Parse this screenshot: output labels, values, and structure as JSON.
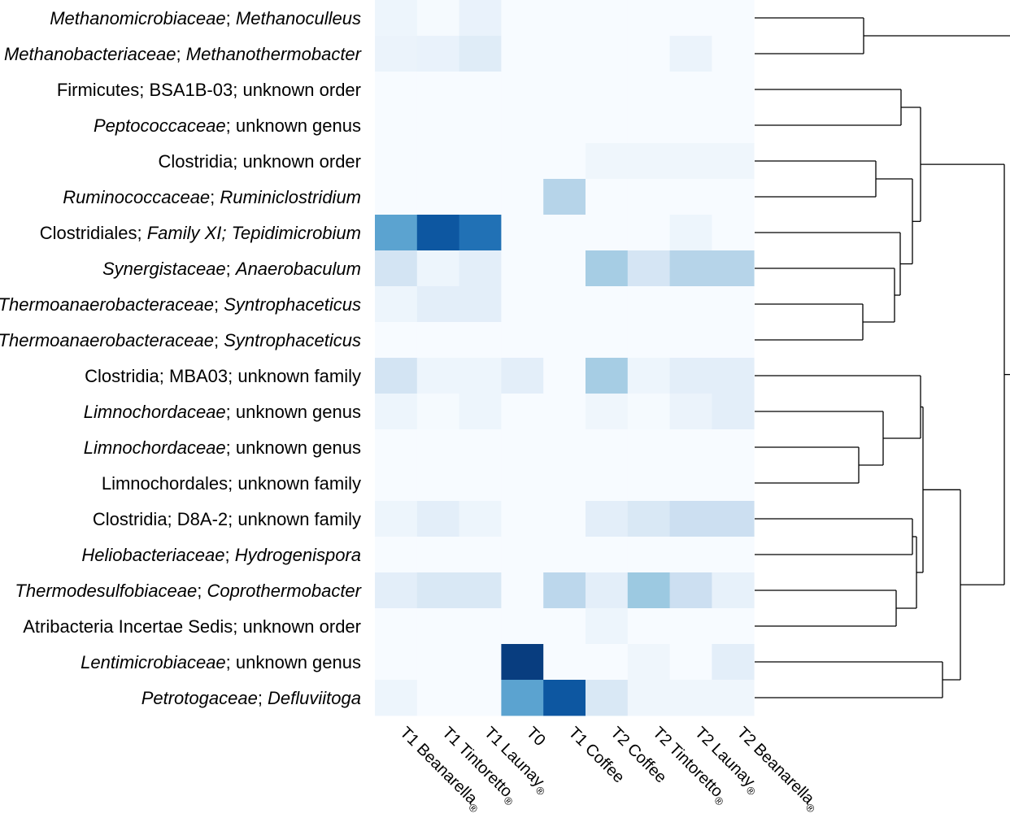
{
  "chart_data": {
    "type": "heatmap",
    "title": "",
    "xlabel": "",
    "ylabel": "",
    "colormap": "Blues",
    "color_low": "#f7fbff",
    "color_high": "#08306b",
    "value_range": [
      0,
      1
    ],
    "columns": [
      {
        "main": "T1 Beanarella",
        "mark": "®"
      },
      {
        "main": "T1 Tintoretto",
        "mark": "®"
      },
      {
        "main": "T1 Launay",
        "mark": "®"
      },
      {
        "main": "T0",
        "mark": ""
      },
      {
        "main": "T1 Coffee",
        "mark": ""
      },
      {
        "main": "T2 Coffee",
        "mark": ""
      },
      {
        "main": "T2 Tintoretto",
        "mark": "®"
      },
      {
        "main": "T2 Launay",
        "mark": "®"
      },
      {
        "main": "T2 Beanarella",
        "mark": "®"
      }
    ],
    "rows": [
      {
        "parts": [
          {
            "t": "Methanomicrobiaceae",
            "i": true
          },
          {
            "t": "; ",
            "i": false
          },
          {
            "t": "Methanoculleus",
            "i": true
          }
        ]
      },
      {
        "parts": [
          {
            "t": "Methanobacteriaceae",
            "i": true
          },
          {
            "t": "; ",
            "i": false
          },
          {
            "t": "Methanothermobacter",
            "i": true
          }
        ]
      },
      {
        "parts": [
          {
            "t": "Firmicutes; BSA1B-03; unknown order",
            "i": false
          }
        ]
      },
      {
        "parts": [
          {
            "t": "Peptococcaceae",
            "i": true
          },
          {
            "t": "; unknown genus",
            "i": false
          }
        ]
      },
      {
        "parts": [
          {
            "t": "Clostridia; unknown order",
            "i": false
          }
        ]
      },
      {
        "parts": [
          {
            "t": "Ruminococcaceae",
            "i": true
          },
          {
            "t": "; ",
            "i": false
          },
          {
            "t": "Ruminiclostridium",
            "i": true
          }
        ]
      },
      {
        "parts": [
          {
            "t": "Clostridiales; ",
            "i": false
          },
          {
            "t": "Family XI; Tepidimicrobium",
            "i": true
          }
        ]
      },
      {
        "parts": [
          {
            "t": "Synergistaceae",
            "i": true
          },
          {
            "t": "; ",
            "i": false
          },
          {
            "t": "Anaerobaculum",
            "i": true
          }
        ]
      },
      {
        "parts": [
          {
            "t": "Thermoanaerobacteraceae",
            "i": true
          },
          {
            "t": "; ",
            "i": false
          },
          {
            "t": "Syntrophaceticus",
            "i": true
          }
        ]
      },
      {
        "parts": [
          {
            "t": "Thermoanaerobacteraceae",
            "i": true
          },
          {
            "t": "; ",
            "i": false
          },
          {
            "t": "Syntrophaceticus",
            "i": true
          }
        ]
      },
      {
        "parts": [
          {
            "t": "Clostridia; MBA03; unknown family",
            "i": false
          }
        ]
      },
      {
        "parts": [
          {
            "t": "Limnochordaceae",
            "i": true
          },
          {
            "t": "; unknown genus",
            "i": false
          }
        ]
      },
      {
        "parts": [
          {
            "t": "Limnochordaceae",
            "i": true
          },
          {
            "t": "; unknown genus",
            "i": false
          }
        ]
      },
      {
        "parts": [
          {
            "t": "Limnochordales; unknown family",
            "i": false
          }
        ]
      },
      {
        "parts": [
          {
            "t": "Clostridia; D8A-2; unknown family",
            "i": false
          }
        ]
      },
      {
        "parts": [
          {
            "t": "Heliobacteriaceae",
            "i": true
          },
          {
            "t": "; ",
            "i": false
          },
          {
            "t": "Hydrogenispora",
            "i": true
          }
        ]
      },
      {
        "parts": [
          {
            "t": "Thermodesulfobiaceae",
            "i": true
          },
          {
            "t": "; ",
            "i": false
          },
          {
            "t": "Coprothermobacter",
            "i": true
          }
        ]
      },
      {
        "parts": [
          {
            "t": "Atribacteria Incertae Sedis; unknown order",
            "i": false
          }
        ]
      },
      {
        "parts": [
          {
            "t": "Lentimicrobiaceae",
            "i": true
          },
          {
            "t": "; unknown genus",
            "i": false
          }
        ]
      },
      {
        "parts": [
          {
            "t": "Petrotogaceae",
            "i": true
          },
          {
            "t": "; ",
            "i": false
          },
          {
            "t": "Defluviitoga",
            "i": true
          }
        ]
      }
    ],
    "values": [
      [
        0.05,
        0.01,
        0.07,
        0,
        0,
        0,
        0,
        0,
        0
      ],
      [
        0.06,
        0.07,
        0.12,
        0,
        0,
        0,
        0,
        0.06,
        0
      ],
      [
        0,
        0,
        0,
        0,
        0,
        0,
        0,
        0,
        0
      ],
      [
        0,
        0,
        0,
        0,
        0,
        0,
        0,
        0,
        0
      ],
      [
        0,
        0,
        0,
        0,
        0,
        0.04,
        0.04,
        0.04,
        0.04
      ],
      [
        0,
        0,
        0,
        0,
        0.3,
        0,
        0,
        0,
        0
      ],
      [
        0.55,
        0.85,
        0.75,
        0,
        0,
        0,
        0,
        0.05,
        0
      ],
      [
        0.18,
        0.05,
        0.1,
        0,
        0,
        0.35,
        0.17,
        0.3,
        0.3
      ],
      [
        0.05,
        0.1,
        0.1,
        0,
        0,
        0,
        0,
        0,
        0
      ],
      [
        0,
        0,
        0,
        0,
        0,
        0,
        0,
        0,
        0
      ],
      [
        0.18,
        0.05,
        0.05,
        0.1,
        0,
        0.35,
        0.05,
        0.1,
        0.1
      ],
      [
        0.05,
        0.01,
        0.05,
        0,
        0,
        0.04,
        0.01,
        0.06,
        0.1
      ],
      [
        0,
        0,
        0,
        0,
        0,
        0,
        0,
        0,
        0
      ],
      [
        0,
        0,
        0,
        0,
        0,
        0,
        0,
        0,
        0
      ],
      [
        0.05,
        0.1,
        0.05,
        0,
        0,
        0.1,
        0.15,
        0.22,
        0.22
      ],
      [
        0,
        0,
        0,
        0,
        0,
        0,
        0,
        0,
        0
      ],
      [
        0.1,
        0.15,
        0.15,
        0,
        0.28,
        0.1,
        0.38,
        0.22,
        0.08
      ],
      [
        0,
        0,
        0,
        0,
        0,
        0.05,
        0,
        0,
        0
      ],
      [
        0,
        0,
        0,
        0.95,
        0,
        0,
        0.04,
        0,
        0.1
      ],
      [
        0.05,
        0,
        0,
        0.55,
        0.85,
        0.15,
        0.04,
        0.04,
        0.04
      ]
    ]
  }
}
